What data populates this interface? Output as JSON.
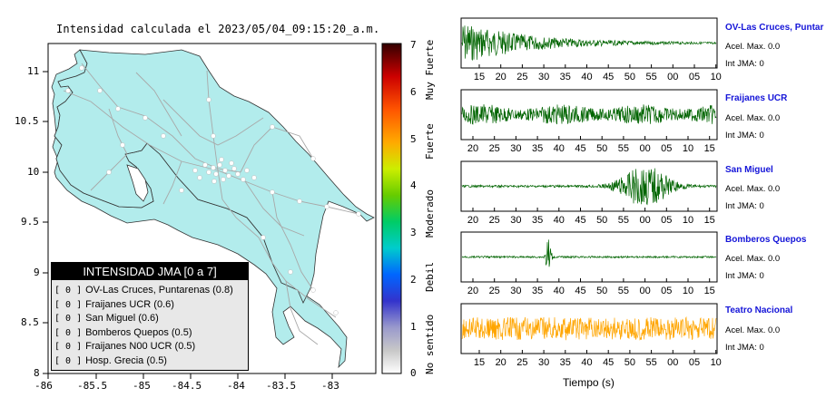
{
  "map": {
    "title": "Intensidad calculada el 2023/05/04_09:15:20_a.m.",
    "x_ticks": [
      "-86",
      "-85.5",
      "-85",
      "-84.5",
      "-84",
      "-83.5",
      "-83"
    ],
    "y_ticks": [
      "11",
      "10.5",
      "10",
      "9.5",
      "9",
      "8.5",
      "8"
    ],
    "colorbar": {
      "ticks": [
        "0",
        "1",
        "2",
        "3",
        "4",
        "5",
        "6",
        "7"
      ],
      "labels": [
        "No sentido",
        "Debil",
        "Moderado",
        "Fuerte",
        "Muy Fuerte"
      ]
    },
    "legend": {
      "title": "INTENSIDAD JMA [0 a 7]",
      "items": [
        {
          "level": "[ 0 ]",
          "name": "OV-Las Cruces, Puntarenas (0.8)"
        },
        {
          "level": "[ 0 ]",
          "name": "Fraijanes UCR (0.6)"
        },
        {
          "level": "[ 0 ]",
          "name": "San Miguel (0.6)"
        },
        {
          "level": "[ 0 ]",
          "name": "Bomberos Quepos (0.5)"
        },
        {
          "level": "[ 0 ]",
          "name": "Fraijanes N00 UCR (0.5)"
        },
        {
          "level": "[ 0 ]",
          "name": "Hosp. Grecia (0.5)"
        }
      ]
    },
    "land_color": "#b2ecec"
  },
  "seismograms": {
    "xlabel": "Tiempo (s)",
    "traces": [
      {
        "name": "OV-Las Cruces, Puntar",
        "acel": "Acel. Max. 0.0",
        "int": "Int JMA: 0",
        "color": "#006400",
        "ticks": [
          "15",
          "20",
          "25",
          "30",
          "35",
          "40",
          "45",
          "50",
          "55",
          "00",
          "05",
          "10"
        ]
      },
      {
        "name": "Fraijanes UCR",
        "acel": "Acel. Max. 0.0",
        "int": "Int JMA: 0",
        "color": "#006400",
        "ticks": [
          "20",
          "25",
          "30",
          "35",
          "40",
          "45",
          "50",
          "55",
          "00",
          "05",
          "10",
          "15"
        ]
      },
      {
        "name": "San Miguel",
        "acel": "Acel. Max. 0.0",
        "int": "Int JMA: 0",
        "color": "#006400",
        "ticks": [
          "20",
          "25",
          "30",
          "35",
          "40",
          "45",
          "50",
          "55",
          "00",
          "05",
          "10",
          "15"
        ]
      },
      {
        "name": "Bomberos Quepos",
        "acel": "Acel. Max. 0.0",
        "int": "Int JMA: 0",
        "color": "#006400",
        "ticks": [
          "20",
          "25",
          "30",
          "35",
          "40",
          "45",
          "50",
          "55",
          "00",
          "05",
          "10",
          "15"
        ]
      },
      {
        "name": "Teatro Nacional",
        "acel": "Acel. Max. 0.0",
        "int": "Int JMA: 0",
        "color": "#ffa500",
        "ticks": [
          "15",
          "20",
          "25",
          "30",
          "35",
          "40",
          "45",
          "50",
          "55",
          "00",
          "05",
          "10"
        ]
      }
    ]
  }
}
